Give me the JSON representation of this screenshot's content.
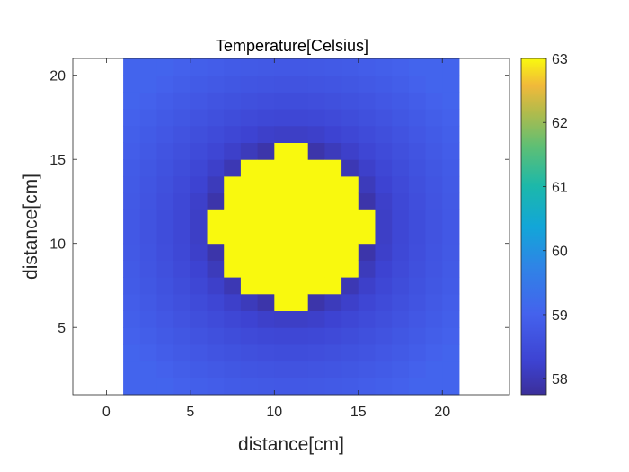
{
  "chart_data": {
    "type": "heatmap",
    "title": "Temperature[Celsius]",
    "xlabel": "distance[cm]",
    "ylabel": "distance[cm]",
    "xlim": [
      -2,
      24
    ],
    "ylim": [
      1,
      21
    ],
    "x_ticks": [
      "0",
      "5",
      "10",
      "15",
      "20"
    ],
    "y_ticks": [
      "5",
      "10",
      "15",
      "20"
    ],
    "grid_x_range": [
      1,
      21
    ],
    "grid_y_range": [
      1,
      21
    ],
    "grid_cells": 20,
    "hot_region": {
      "center": [
        11,
        11
      ],
      "radius": 4.6,
      "value": 63
    },
    "background_value": 59.05,
    "min_value": 57.75,
    "colormap": "parula",
    "colorbar": {
      "limits": [
        57.75,
        63
      ],
      "ticks": [
        "58",
        "59",
        "60",
        "61",
        "62",
        "63"
      ]
    },
    "grid": false
  }
}
